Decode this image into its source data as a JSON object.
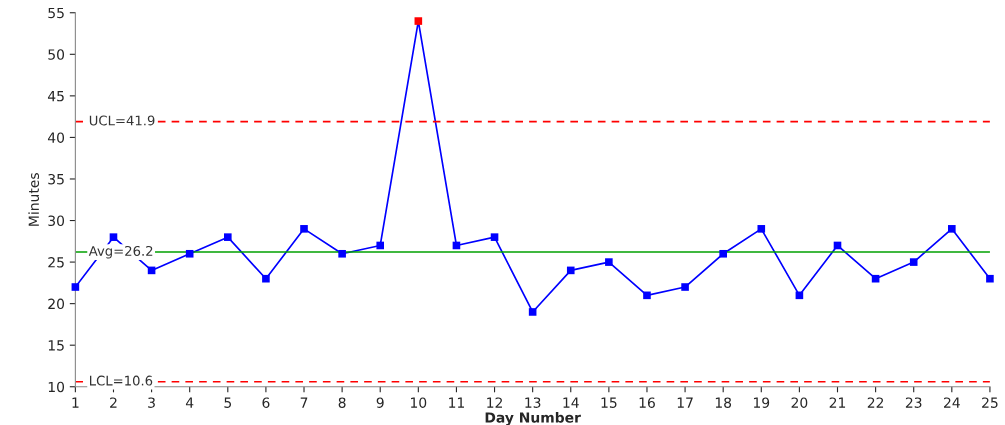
{
  "chart_data": {
    "type": "line",
    "xlabel": "Day Number",
    "ylabel": "Minutes",
    "x": [
      1,
      2,
      3,
      4,
      5,
      6,
      7,
      8,
      9,
      10,
      11,
      12,
      13,
      14,
      15,
      16,
      17,
      18,
      19,
      20,
      21,
      22,
      23,
      24,
      25
    ],
    "series": [
      {
        "color": "#0000ff",
        "values": [
          22,
          28,
          24,
          26,
          28,
          23,
          29,
          26,
          27,
          54,
          27,
          28,
          19,
          24,
          25,
          21,
          22,
          26,
          29,
          21,
          27,
          23,
          25,
          29,
          23
        ],
        "colors": [
          "#0000ff",
          "#0000ff",
          "#0000ff",
          "#0000ff",
          "#0000ff",
          "#0000ff",
          "#0000ff",
          "#0000ff",
          "#0000ff",
          "#ff0000",
          "#0000ff",
          "#0000ff",
          "#0000ff",
          "#0000ff",
          "#0000ff",
          "#0000ff",
          "#0000ff",
          "#0000ff",
          "#0000ff",
          "#0000ff",
          "#0000ff",
          "#0000ff",
          "#0000ff",
          "#0000ff",
          "#0000ff"
        ]
      }
    ],
    "xlim": [
      1,
      25
    ],
    "xticks": [
      1,
      2,
      3,
      4,
      5,
      6,
      7,
      8,
      9,
      10,
      11,
      12,
      13,
      14,
      15,
      16,
      17,
      18,
      19,
      20,
      21,
      22,
      23,
      24,
      25
    ],
    "ylim": [
      10,
      55
    ],
    "yticks": [
      10,
      15,
      20,
      25,
      30,
      35,
      40,
      45,
      50,
      55
    ],
    "ref_lines": [
      {
        "axis": "y",
        "value": 41.9,
        "label": "UCL=41.9",
        "color": "#ff0000",
        "line_style": "dashed"
      },
      {
        "axis": "y",
        "value": 26.2,
        "label": "Avg=26.2",
        "color": "#00a000",
        "line_style": "solid"
      },
      {
        "axis": "y",
        "value": 10.6,
        "label": "LCL=10.6",
        "color": "#ff0000",
        "line_style": "dashed"
      }
    ],
    "grid": false,
    "marker": "square",
    "line_style": "solid"
  }
}
